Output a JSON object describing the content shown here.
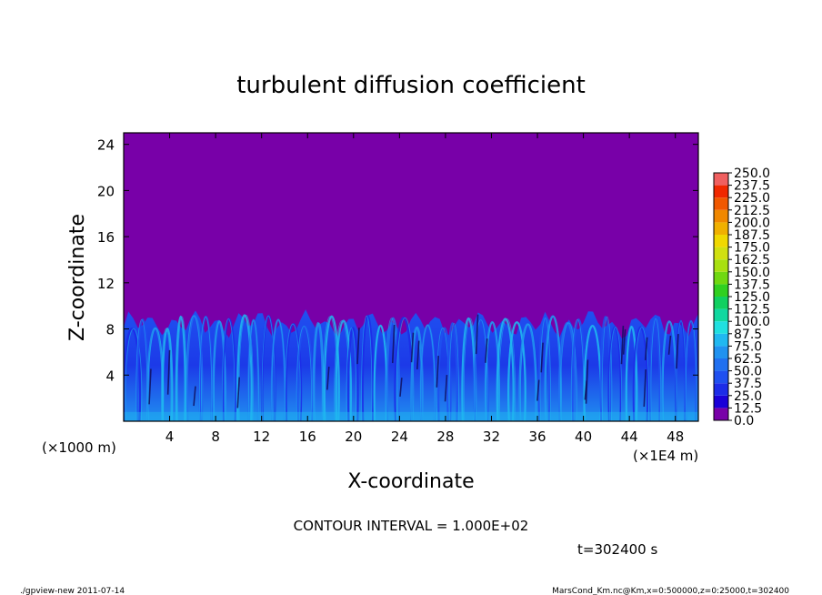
{
  "chart_data": {
    "type": "heatmap",
    "title": "turbulent diffusion coefficient",
    "xlabel": "X-coordinate",
    "ylabel": "Z-coordinate",
    "x_unit_label": "(×1E4 m)",
    "y_unit_label": "(×1000 m)",
    "xlim": [
      0,
      50
    ],
    "ylim": [
      0,
      25
    ],
    "x_ticks": [
      4,
      8,
      12,
      16,
      20,
      24,
      28,
      32,
      36,
      40,
      44,
      48
    ],
    "y_ticks": [
      4,
      8,
      12,
      16,
      20,
      24
    ],
    "grid": false,
    "background_value": 0.0,
    "turbulent_layer_top_z": 9.0,
    "turbulent_layer_value_range": [
      12.5,
      87.5
    ],
    "colorbar": {
      "levels": [
        "0.0",
        "12.5",
        "25.0",
        "37.5",
        "50.0",
        "62.5",
        "75.0",
        "87.5",
        "100.0",
        "112.5",
        "125.0",
        "137.5",
        "150.0",
        "162.5",
        "175.0",
        "187.5",
        "200.0",
        "212.5",
        "225.0",
        "237.5",
        "250.0"
      ],
      "colors": [
        "#7800a8",
        "#1a00d8",
        "#1c2ce8",
        "#1f50f0",
        "#2070f0",
        "#2092f0",
        "#20b8f0",
        "#20e0e0",
        "#10d8a0",
        "#10d060",
        "#30d020",
        "#70d810",
        "#a8e010",
        "#d0e010",
        "#f0d800",
        "#f0b000",
        "#f08800",
        "#f05800",
        "#f02800",
        "#f06060",
        "#f09898"
      ],
      "placement": "right"
    },
    "contour_interval_text": "CONTOUR INTERVAL = 1.000E+02",
    "time_text": "t=302400 s"
  },
  "footer": {
    "program": "./gpview-new   2011-07-14",
    "source": "MarsCond_Km.nc@Km,x=0:500000,z=0:25000,t=302400"
  },
  "colors": {
    "background_fill": "#7800a8",
    "turbulence_base": "#1a2ae0"
  }
}
